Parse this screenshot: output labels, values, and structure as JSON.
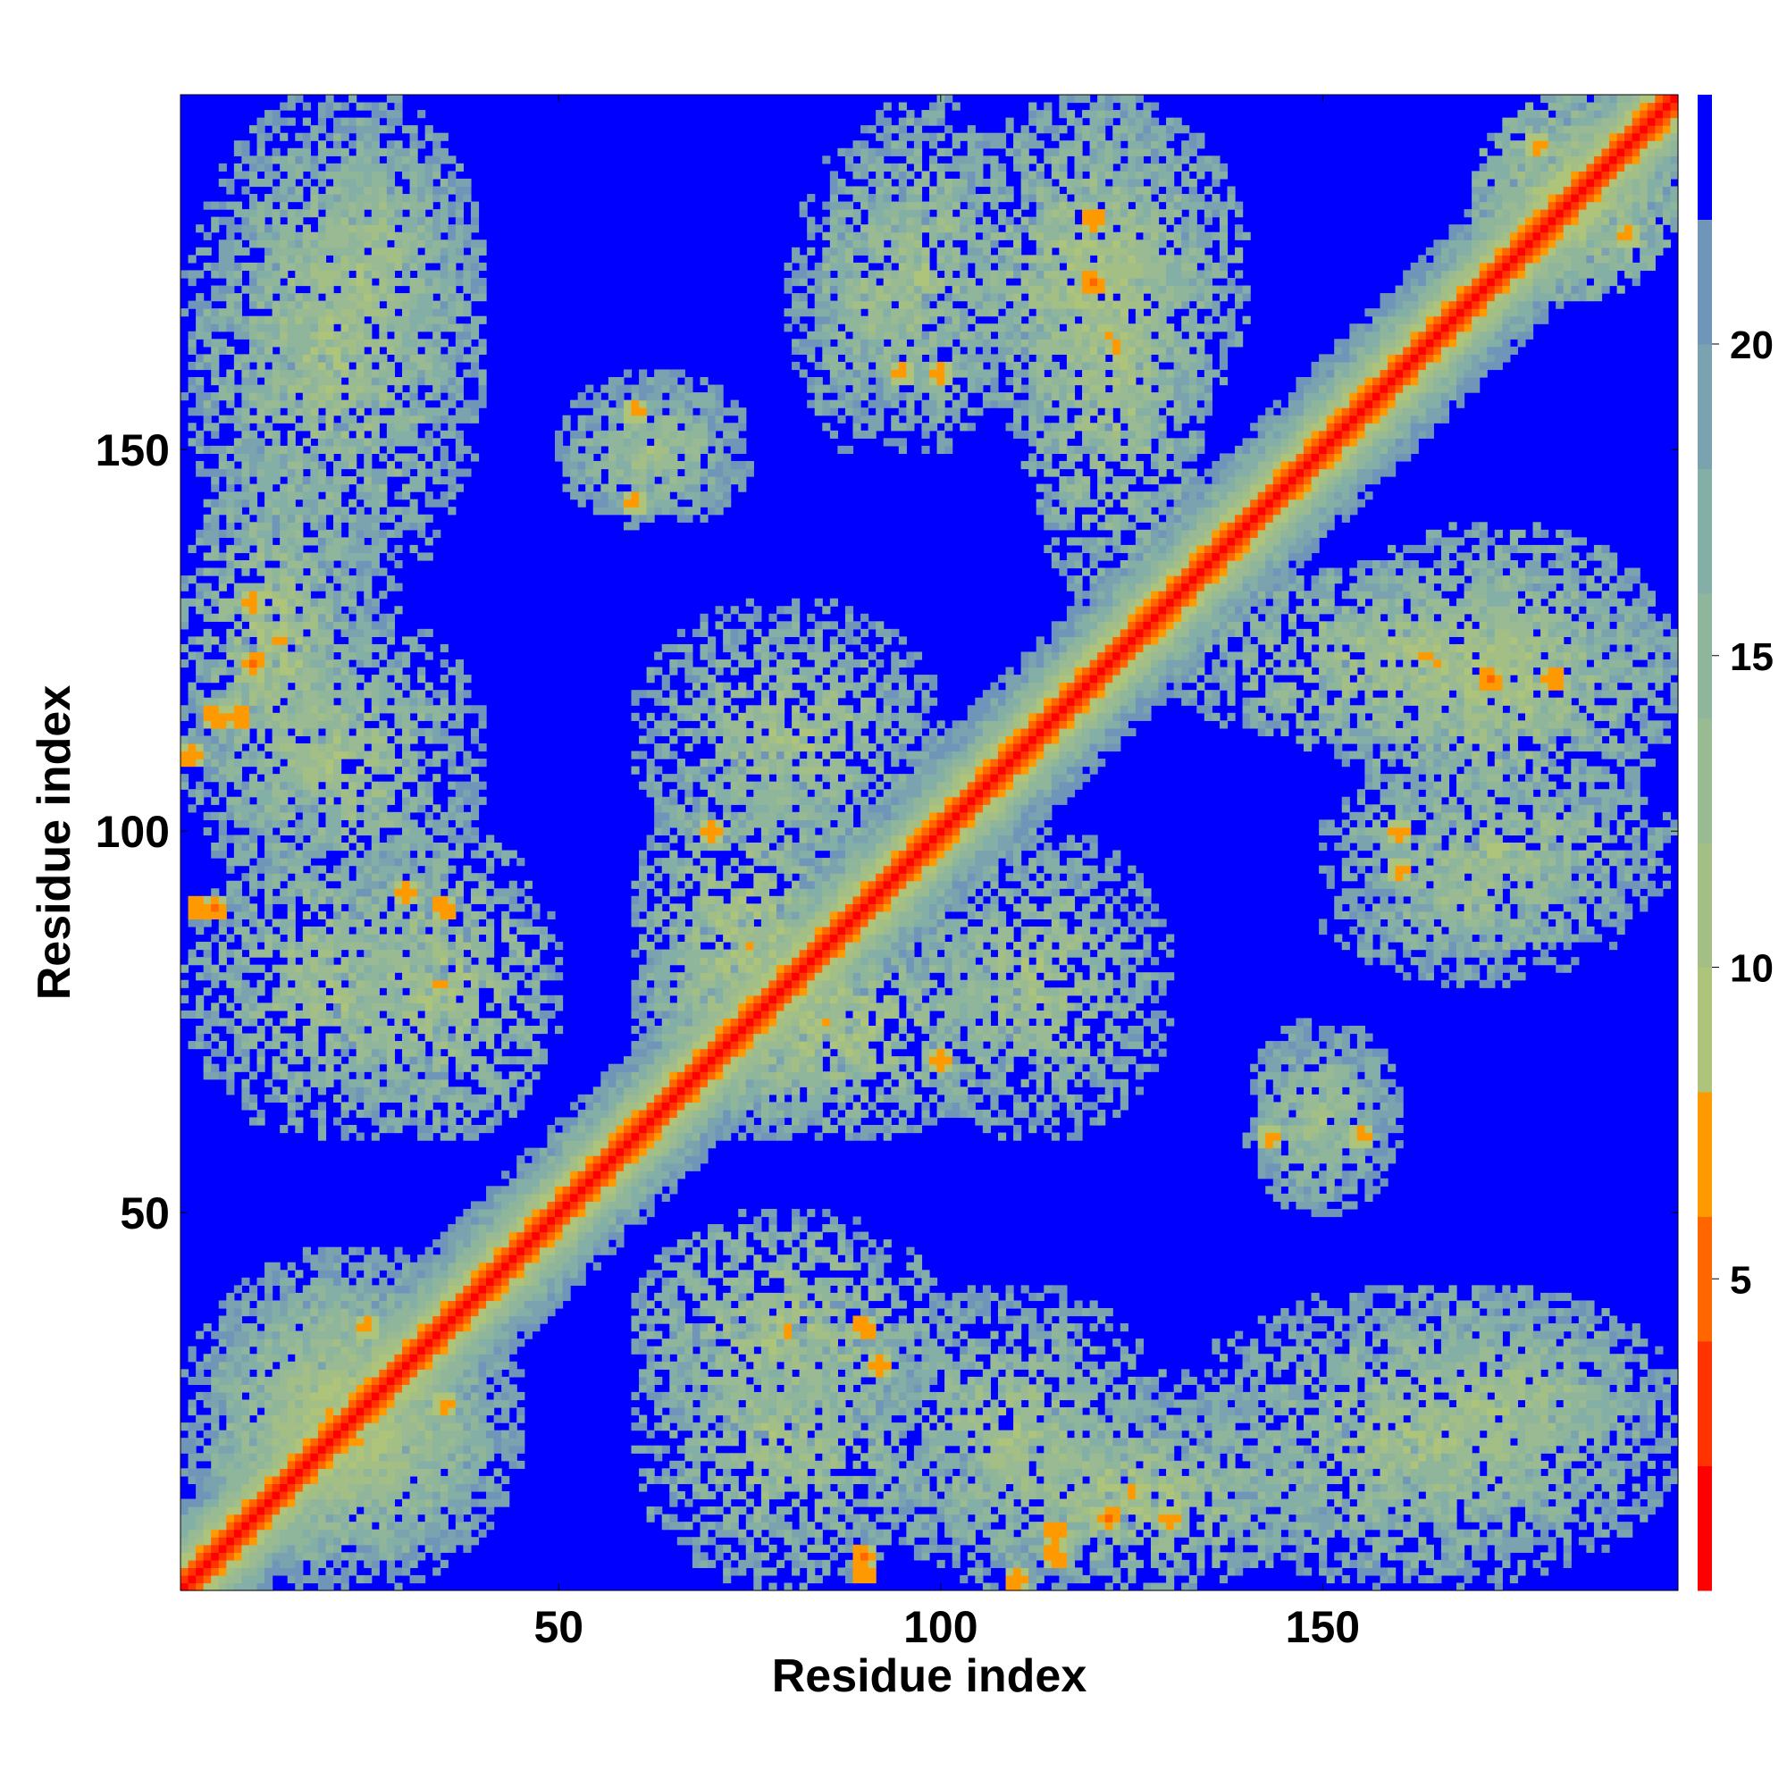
{
  "chart_data": {
    "type": "heatmap",
    "title": "",
    "xlabel": "Residue index",
    "ylabel": "Residue index",
    "n_residues": 196,
    "xlim": [
      1,
      196
    ],
    "ylim": [
      1,
      196
    ],
    "xticks": [
      50,
      100,
      150
    ],
    "yticks": [
      50,
      100,
      150
    ],
    "grid": false,
    "matrix_symmetric": true,
    "colorbar": {
      "ticks": [
        5,
        10,
        15,
        20
      ],
      "range": [
        0,
        24
      ],
      "levels": [
        {
          "max": 2,
          "color": "#ff0000"
        },
        {
          "max": 4,
          "color": "#ff3300"
        },
        {
          "max": 6,
          "color": "#ff6600"
        },
        {
          "max": 8,
          "color": "#ff9900"
        },
        {
          "max": 10,
          "color": "#aec47a"
        },
        {
          "max": 12,
          "color": "#a3bf86"
        },
        {
          "max": 14,
          "color": "#99ba92"
        },
        {
          "max": 16,
          "color": "#8fb59b"
        },
        {
          "max": 18,
          "color": "#84afa6"
        },
        {
          "max": 20,
          "color": "#7aa3af"
        },
        {
          "max": 22,
          "color": "#6f96b8"
        },
        {
          "max": 24,
          "color": "#0000ff"
        }
      ]
    },
    "contact_clusters": [
      {
        "i": [
          10,
          40
        ],
        "j": [
          150,
          196
        ],
        "distance": 15
      },
      {
        "i": [
          1,
          25
        ],
        "j": [
          100,
          150
        ],
        "distance": 14
      },
      {
        "i": [
          1,
          40
        ],
        "j": [
          60,
          100
        ],
        "distance": 15
      },
      {
        "i": [
          5,
          40
        ],
        "j": [
          5,
          40
        ],
        "distance": 13
      },
      {
        "i": [
          1,
          45
        ],
        "j": [
          1,
          45
        ],
        "distance": 16
      },
      {
        "i": [
          50,
          75
        ],
        "j": [
          140,
          160
        ],
        "distance": 16
      },
      {
        "i": [
          60,
          90
        ],
        "j": [
          60,
          110
        ],
        "distance": 14
      },
      {
        "i": [
          85,
          110
        ],
        "j": [
          150,
          196
        ],
        "distance": 15
      },
      {
        "i": [
          110,
          135
        ],
        "j": [
          130,
          196
        ],
        "distance": 14
      },
      {
        "i": [
          90,
          130
        ],
        "j": [
          1,
          40
        ],
        "distance": 15
      },
      {
        "i": [
          60,
          100
        ],
        "j": [
          20,
          50
        ],
        "distance": 14
      },
      {
        "i": [
          130,
          196
        ],
        "j": [
          1,
          40
        ],
        "distance": 15
      },
      {
        "i": [
          150,
          196
        ],
        "j": [
          100,
          140
        ],
        "distance": 14
      },
      {
        "i": [
          150,
          190
        ],
        "j": [
          80,
          100
        ],
        "distance": 16
      },
      {
        "i": [
          140,
          160
        ],
        "j": [
          50,
          75
        ],
        "distance": 16
      },
      {
        "i": [
          95,
          130
        ],
        "j": [
          60,
          100
        ],
        "distance": 15
      },
      {
        "i": [
          170,
          196
        ],
        "j": [
          170,
          196
        ],
        "distance": 13
      }
    ],
    "close_contacts": [
      {
        "i": 5,
        "j": 115,
        "distance": 5
      },
      {
        "i": 10,
        "j": 122,
        "distance": 5
      },
      {
        "i": 3,
        "j": 90,
        "distance": 5
      },
      {
        "i": 30,
        "j": 92,
        "distance": 5
      },
      {
        "i": 25,
        "j": 35,
        "distance": 6
      },
      {
        "i": 90,
        "j": 35,
        "distance": 5
      },
      {
        "i": 90,
        "j": 5,
        "distance": 5
      },
      {
        "i": 115,
        "j": 8,
        "distance": 5
      },
      {
        "i": 120,
        "j": 180,
        "distance": 5
      },
      {
        "i": 110,
        "j": 2,
        "distance": 5
      },
      {
        "i": 172,
        "j": 120,
        "distance": 5
      },
      {
        "i": 178,
        "j": 190,
        "distance": 6
      },
      {
        "i": 160,
        "j": 100,
        "distance": 6
      },
      {
        "i": 95,
        "j": 160,
        "distance": 6
      },
      {
        "i": 60,
        "j": 155,
        "distance": 6
      },
      {
        "i": 143,
        "j": 60,
        "distance": 6
      },
      {
        "i": 100,
        "j": 70,
        "distance": 6
      },
      {
        "i": 70,
        "j": 100,
        "distance": 6
      },
      {
        "i": 130,
        "j": 10,
        "distance": 6
      },
      {
        "i": 10,
        "j": 130,
        "distance": 6
      }
    ]
  }
}
